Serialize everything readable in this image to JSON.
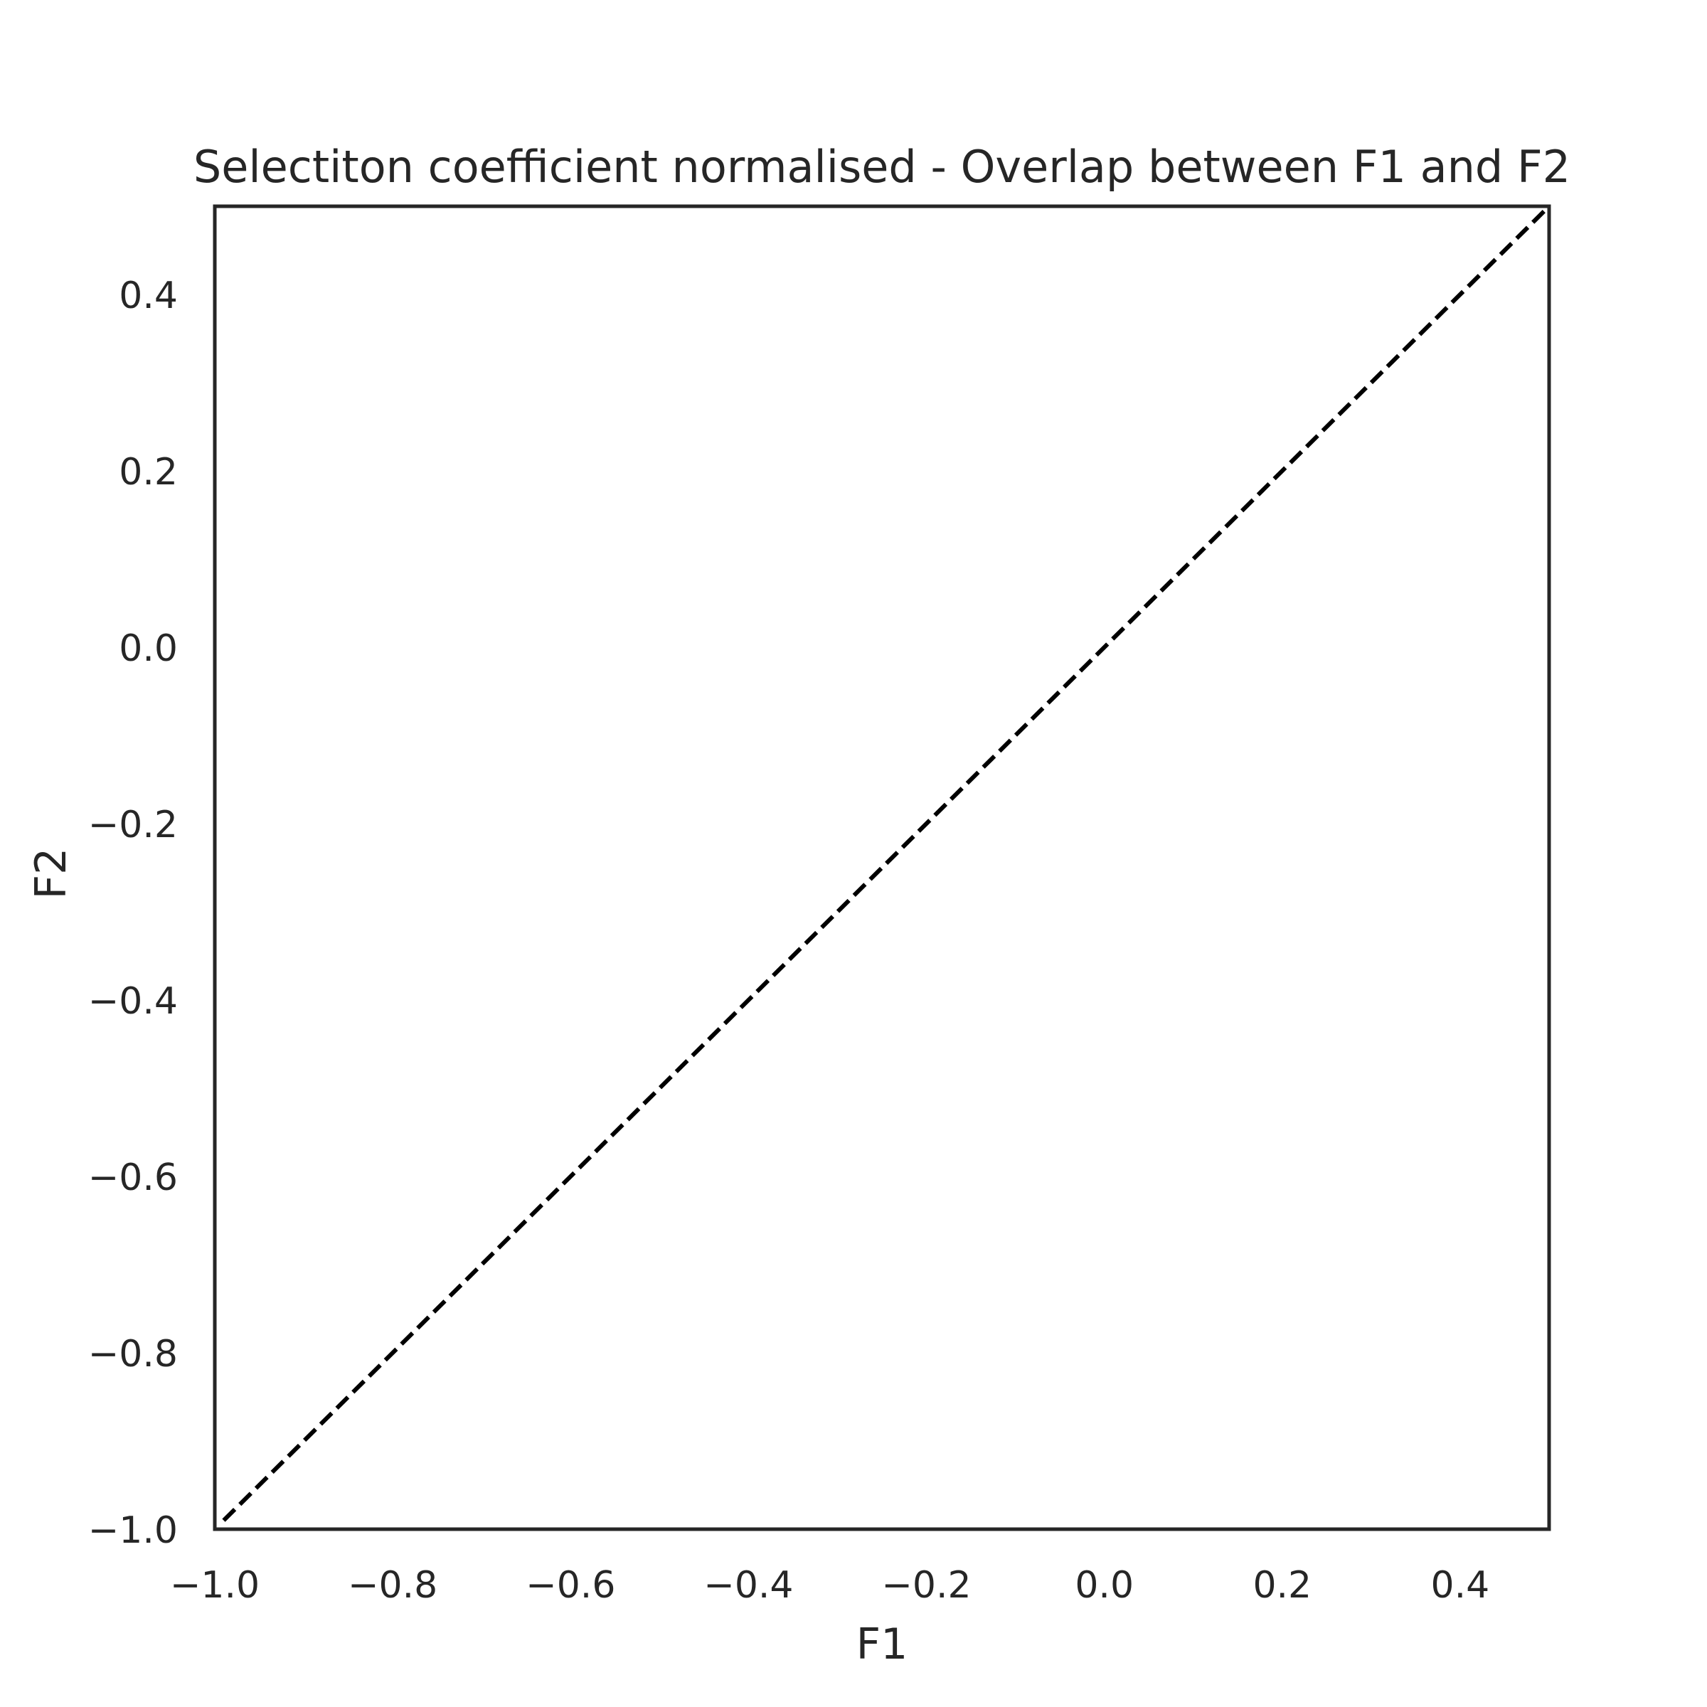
{
  "chart_data": {
    "type": "line",
    "title": "Selectiton coefficient normalised - Overlap between F1 and F2",
    "xlabel": "F1",
    "ylabel": "F2",
    "xlim": [
      -1.0,
      0.5
    ],
    "ylim": [
      -1.0,
      0.5
    ],
    "xticks": [
      "−1.0",
      "−0.8",
      "−0.6",
      "−0.4",
      "−0.2",
      "0.0",
      "0.2",
      "0.4"
    ],
    "xtick_values": [
      -1.0,
      -0.8,
      -0.6,
      -0.4,
      -0.2,
      0.0,
      0.2,
      0.4
    ],
    "yticks": [
      "−1.0",
      "−0.8",
      "−0.6",
      "−0.4",
      "−0.2",
      "0.0",
      "0.2",
      "0.4"
    ],
    "ytick_values": [
      -1.0,
      -0.8,
      -0.6,
      -0.4,
      -0.2,
      0.0,
      0.2,
      0.4
    ],
    "grid": false,
    "series": [
      {
        "style": "dashed",
        "color": "#000000",
        "x": [
          -0.99,
          0.5
        ],
        "y": [
          -0.99,
          0.5
        ]
      }
    ]
  }
}
